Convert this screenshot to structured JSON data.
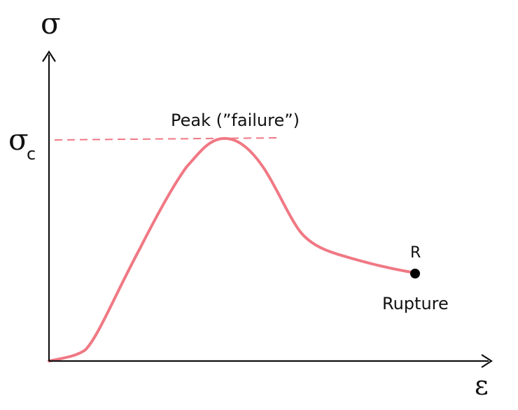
{
  "diagram": {
    "y_axis_symbol": "σ",
    "x_axis_symbol": "ε",
    "peak_stress_symbol": "σ",
    "peak_stress_subscript": "c",
    "peak_label": "Peak (”failure”)",
    "rupture_point_letter": "R",
    "rupture_label": "Rupture",
    "colors": {
      "curve": "#f07884",
      "dashed_line": "#f07884",
      "axes": "#111111",
      "rupture_marker": "#000000"
    }
  }
}
